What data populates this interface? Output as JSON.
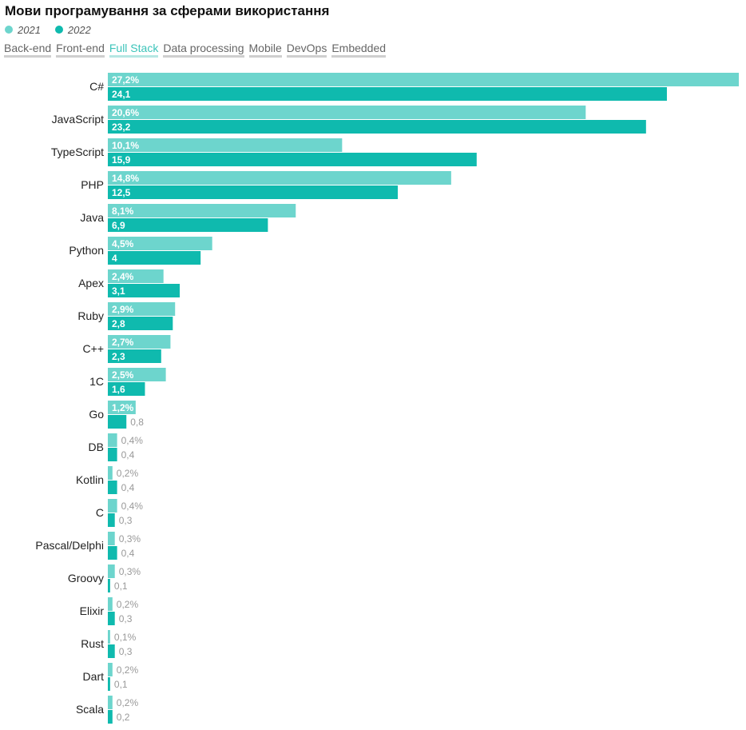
{
  "title": "Мови програмування за сферами використання",
  "legend": [
    {
      "label": "2021",
      "color": "#6dd5cd"
    },
    {
      "label": "2022",
      "color": "#0fbaae"
    }
  ],
  "tabs": [
    {
      "label": "Back-end",
      "active": false
    },
    {
      "label": "Front-end",
      "active": false
    },
    {
      "label": "Full Stack",
      "active": true
    },
    {
      "label": "Data processing",
      "active": false
    },
    {
      "label": "Mobile",
      "active": false
    },
    {
      "label": "DevOps",
      "active": false
    },
    {
      "label": "Embedded",
      "active": false
    }
  ],
  "chart_data": {
    "type": "bar",
    "orientation": "horizontal",
    "categories": [
      "C#",
      "JavaScript",
      "TypeScript",
      "PHP",
      "Java",
      "Python",
      "Apex",
      "Ruby",
      "C++",
      "1C",
      "Go",
      "DB",
      "Kotlin",
      "C",
      "Pascal/Delphi",
      "Groovy",
      "Elixir",
      "Rust",
      "Dart",
      "Scala"
    ],
    "series": [
      {
        "name": "2021",
        "color": "#6dd5cd",
        "values": [
          27.2,
          20.6,
          10.1,
          14.8,
          8.1,
          4.5,
          2.4,
          2.9,
          2.7,
          2.5,
          1.2,
          0.4,
          0.2,
          0.4,
          0.3,
          0.3,
          0.2,
          0.1,
          0.2,
          0.2
        ],
        "labels": [
          "27,2%",
          "20,6%",
          "10,1%",
          "14,8%",
          "8,1%",
          "4,5%",
          "2,4%",
          "2,9%",
          "2,7%",
          "2,5%",
          "1,2%",
          "0,4%",
          "0,2%",
          "0,4%",
          "0,3%",
          "0,3%",
          "0,2%",
          "0,1%",
          "0,2%",
          "0,2%"
        ]
      },
      {
        "name": "2022",
        "color": "#0fbaae",
        "values": [
          24.1,
          23.2,
          15.9,
          12.5,
          6.9,
          4,
          3.1,
          2.8,
          2.3,
          1.6,
          0.8,
          0.4,
          0.4,
          0.3,
          0.4,
          0.1,
          0.3,
          0.3,
          0.1,
          0.2
        ],
        "labels": [
          "24,1",
          "23,2",
          "15,9",
          "12,5",
          "6,9",
          "4",
          "3,1",
          "2,8",
          "2,3",
          "1,6",
          "0,8",
          "0,4",
          "0,4",
          "0,3",
          "0,4",
          "0,1",
          "0,3",
          "0,3",
          "0,1",
          "0,2"
        ]
      }
    ],
    "xlim": [
      0,
      27.2
    ],
    "grid": false,
    "legend_position": "top-left"
  }
}
